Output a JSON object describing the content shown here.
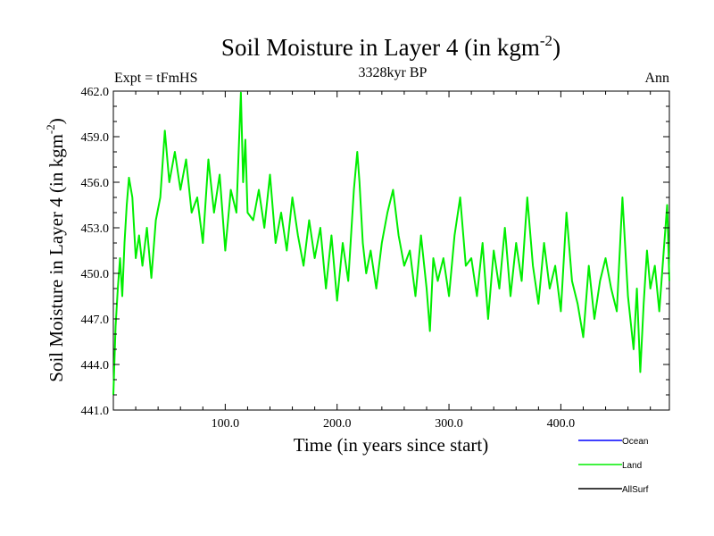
{
  "chart_data": {
    "type": "line",
    "title": "Soil Moisture in Layer 4 (in kgm",
    "title_exponent": "-2",
    "title_close": ")",
    "subtitle": "3328kyr BP",
    "left_label": "Expt = tFmHS",
    "right_label": "Ann",
    "xlabel": "Time (in years since start)",
    "ylabel": "Soil Moisture in Layer 4 (in kgm",
    "ylabel_exponent": "-2",
    "ylabel_close": ")",
    "xlim": [
      0,
      497
    ],
    "ylim": [
      441.0,
      462.0
    ],
    "x_ticks": [
      100.0,
      200.0,
      300.0,
      400.0
    ],
    "x_tick_labels": [
      "100.0",
      "200.0",
      "300.0",
      "400.0"
    ],
    "y_ticks": [
      441.0,
      444.0,
      447.0,
      450.0,
      453.0,
      456.0,
      459.0,
      462.0
    ],
    "y_tick_labels": [
      "441.0",
      "444.0",
      "447.0",
      "450.0",
      "453.0",
      "456.0",
      "459.0",
      "462.0"
    ],
    "legend": [
      {
        "name": "Ocean",
        "color": "#0000ff"
      },
      {
        "name": "Land",
        "color": "#00ee00"
      },
      {
        "name": "AllSurf",
        "color": "#000000"
      }
    ],
    "series": [
      {
        "name": "Land",
        "color": "#00ee00",
        "x": [
          0,
          2,
          4,
          6,
          8,
          10,
          12,
          14,
          17,
          20,
          23,
          26,
          30,
          34,
          38,
          42,
          46,
          50,
          55,
          60,
          65,
          70,
          75,
          80,
          85,
          90,
          95,
          100,
          105,
          110,
          112,
          114,
          116,
          118,
          120,
          125,
          130,
          135,
          140,
          145,
          150,
          155,
          160,
          165,
          170,
          175,
          180,
          185,
          190,
          195,
          200,
          205,
          210,
          215,
          218,
          220,
          223,
          226,
          230,
          235,
          240,
          245,
          250,
          255,
          260,
          265,
          270,
          275,
          280,
          283,
          286,
          290,
          295,
          300,
          305,
          310,
          315,
          320,
          325,
          330,
          335,
          340,
          345,
          350,
          355,
          360,
          365,
          370,
          375,
          380,
          385,
          390,
          395,
          400,
          405,
          410,
          415,
          420,
          425,
          430,
          435,
          440,
          445,
          450,
          455,
          460,
          465,
          468,
          471,
          474,
          477,
          480,
          484,
          488,
          492,
          495,
          497
        ],
        "values": [
          442.0,
          446.5,
          449.0,
          451.0,
          448.5,
          452.0,
          454.5,
          456.3,
          455.0,
          451.0,
          452.5,
          450.5,
          453.0,
          449.7,
          453.5,
          455.0,
          459.4,
          456.0,
          458.0,
          455.5,
          457.5,
          454.0,
          455.0,
          452.0,
          457.5,
          454.0,
          456.5,
          451.5,
          455.5,
          454.0,
          458.0,
          461.9,
          456.0,
          458.8,
          454.0,
          453.5,
          455.5,
          453.0,
          456.5,
          452.0,
          454.0,
          451.5,
          455.0,
          452.5,
          450.5,
          453.5,
          451.0,
          453.0,
          449.0,
          452.5,
          448.2,
          452.0,
          449.5,
          455.5,
          458.0,
          456.0,
          452.0,
          450.0,
          451.5,
          449.0,
          452.0,
          454.0,
          455.5,
          452.5,
          450.5,
          451.5,
          448.5,
          452.5,
          449.0,
          446.2,
          451.0,
          449.5,
          451.0,
          448.5,
          452.5,
          455.0,
          450.5,
          451.0,
          448.5,
          452.0,
          447.0,
          451.5,
          449.0,
          453.0,
          448.5,
          452.0,
          449.5,
          455.0,
          450.5,
          448.0,
          452.0,
          449.0,
          450.5,
          447.5,
          454.0,
          449.5,
          448.0,
          445.8,
          450.5,
          447.0,
          449.5,
          451.0,
          449.0,
          447.5,
          455.0,
          448.5,
          445.0,
          449.0,
          443.5,
          448.0,
          451.5,
          449.0,
          450.5,
          447.5,
          451.5,
          454.5,
          449.5
        ]
      }
    ]
  }
}
